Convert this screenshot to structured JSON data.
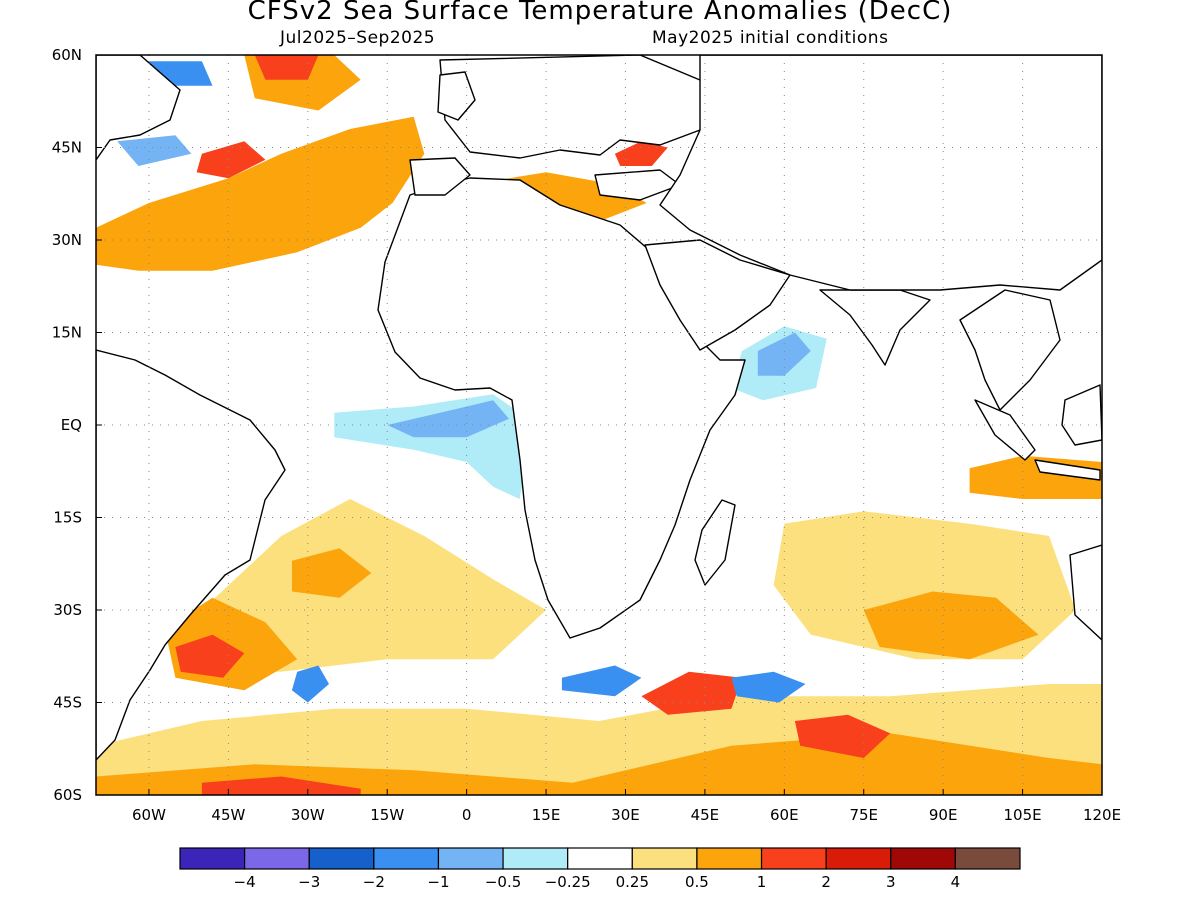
{
  "title": "CFSv2 Sea Surface Temperature Anomalies (DecC)",
  "subtitle_left": "Jul2025–Sep2025",
  "subtitle_right": "May2025 initial conditions",
  "map": {
    "lon_range": [
      -70,
      120
    ],
    "lat_range": [
      -60,
      60
    ],
    "lat_labels": [
      {
        "lat": 60,
        "text": "60N"
      },
      {
        "lat": 45,
        "text": "45N"
      },
      {
        "lat": 30,
        "text": "30N"
      },
      {
        "lat": 15,
        "text": "15N"
      },
      {
        "lat": 0,
        "text": "EQ"
      },
      {
        "lat": -15,
        "text": "15S"
      },
      {
        "lat": -30,
        "text": "30S"
      },
      {
        "lat": -45,
        "text": "45S"
      },
      {
        "lat": -60,
        "text": "60S"
      }
    ],
    "lon_labels": [
      {
        "lon": -60,
        "text": "60W"
      },
      {
        "lon": -45,
        "text": "45W"
      },
      {
        "lon": -30,
        "text": "30W"
      },
      {
        "lon": -15,
        "text": "15W"
      },
      {
        "lon": 0,
        "text": "0"
      },
      {
        "lon": 15,
        "text": "15E"
      },
      {
        "lon": 30,
        "text": "30E"
      },
      {
        "lon": 45,
        "text": "45E"
      },
      {
        "lon": 60,
        "text": "60E"
      },
      {
        "lon": 75,
        "text": "75E"
      },
      {
        "lon": 90,
        "text": "90E"
      },
      {
        "lon": 105,
        "text": "105E"
      },
      {
        "lon": 120,
        "text": "120E"
      }
    ]
  },
  "colorbar": {
    "colors": [
      "#3b24b8",
      "#7a68e8",
      "#1660cc",
      "#3a90f0",
      "#74b4f4",
      "#b0ecf8",
      "#ffffff",
      "#fde07e",
      "#fca40c",
      "#f8401c",
      "#d81c08",
      "#a00808",
      "#7a4a3c"
    ],
    "labels": [
      "−4",
      "−3",
      "−2",
      "−1",
      "−0.5",
      "−0.25",
      "0.25",
      "0.5",
      "1",
      "2",
      "3",
      "4"
    ]
  },
  "anomaly_regions": [
    {
      "name": "North Atlantic subtropical warm band",
      "color": "#fca40c",
      "poly": [
        [
          -70,
          32
        ],
        [
          -60,
          36
        ],
        [
          -45,
          40
        ],
        [
          -35,
          44
        ],
        [
          -22,
          48
        ],
        [
          -10,
          50
        ],
        [
          -8,
          44
        ],
        [
          -14,
          36
        ],
        [
          -20,
          32
        ],
        [
          -32,
          28
        ],
        [
          -48,
          25
        ],
        [
          -62,
          25
        ],
        [
          -70,
          26
        ]
      ]
    },
    {
      "name": "North Atlantic subpolar warm patch",
      "color": "#fca40c",
      "poly": [
        [
          -42,
          60
        ],
        [
          -25,
          60
        ],
        [
          -20,
          56
        ],
        [
          -28,
          51
        ],
        [
          -40,
          53
        ]
      ]
    },
    {
      "name": "North Atlantic subpolar warm core",
      "color": "#f8401c",
      "poly": [
        [
          -40,
          60
        ],
        [
          -28,
          60
        ],
        [
          -30,
          56
        ],
        [
          -38,
          56
        ]
      ]
    },
    {
      "name": "Mid-Atlantic warm core",
      "color": "#f8401c",
      "poly": [
        [
          -50,
          44
        ],
        [
          -42,
          46
        ],
        [
          -38,
          43
        ],
        [
          -45,
          40
        ],
        [
          -51,
          41
        ]
      ]
    },
    {
      "name": "Labrador cold patch",
      "color": "#3a90f0",
      "poly": [
        [
          -62,
          59
        ],
        [
          -50,
          59
        ],
        [
          -48,
          55
        ],
        [
          -56,
          55
        ]
      ]
    },
    {
      "name": "Nova Scotia cold patch",
      "color": "#74b4f4",
      "poly": [
        [
          -66,
          46
        ],
        [
          -55,
          47
        ],
        [
          -52,
          44
        ],
        [
          -62,
          42
        ]
      ]
    },
    {
      "name": "Mediterranean warm",
      "color": "#fca40c",
      "poly": [
        [
          -2,
          38
        ],
        [
          8,
          40
        ],
        [
          15,
          41
        ],
        [
          28,
          39
        ],
        [
          34,
          36
        ],
        [
          25,
          33
        ],
        [
          12,
          33
        ],
        [
          0,
          35
        ]
      ]
    },
    {
      "name": "Black Sea warm",
      "color": "#f8401c",
      "poly": [
        [
          28,
          44
        ],
        [
          33,
          46
        ],
        [
          38,
          45
        ],
        [
          35,
          42
        ],
        [
          29,
          42
        ]
      ]
    },
    {
      "name": "Gulf of Guinea cold tongue",
      "color": "#b0ecf8",
      "poly": [
        [
          -25,
          2
        ],
        [
          -10,
          3
        ],
        [
          5,
          5
        ],
        [
          10,
          2
        ],
        [
          12,
          -3
        ],
        [
          10,
          -12
        ],
        [
          5,
          -10
        ],
        [
          0,
          -6
        ],
        [
          -10,
          -4
        ],
        [
          -25,
          -2
        ]
      ]
    },
    {
      "name": "Gulf of Guinea cold core",
      "color": "#74b4f4",
      "poly": [
        [
          -15,
          0
        ],
        [
          -5,
          2
        ],
        [
          5,
          4
        ],
        [
          8,
          1
        ],
        [
          0,
          -2
        ],
        [
          -10,
          -2
        ]
      ]
    },
    {
      "name": "Arabian Sea cold",
      "color": "#b0ecf8",
      "poly": [
        [
          52,
          12
        ],
        [
          60,
          16
        ],
        [
          68,
          14
        ],
        [
          66,
          6
        ],
        [
          56,
          4
        ],
        [
          50,
          6
        ]
      ]
    },
    {
      "name": "Arabian Sea cold core",
      "color": "#74b4f4",
      "poly": [
        [
          55,
          12
        ],
        [
          62,
          15
        ],
        [
          65,
          12
        ],
        [
          60,
          8
        ],
        [
          55,
          8
        ]
      ]
    },
    {
      "name": "South Atlantic warm band",
      "color": "#fde07e",
      "poly": [
        [
          -50,
          -30
        ],
        [
          -35,
          -18
        ],
        [
          -22,
          -12
        ],
        [
          -8,
          -18
        ],
        [
          5,
          -25
        ],
        [
          15,
          -30
        ],
        [
          5,
          -38
        ],
        [
          -15,
          -38
        ],
        [
          -35,
          -40
        ],
        [
          -50,
          -40
        ]
      ]
    },
    {
      "name": "South Atlantic warm core",
      "color": "#fca40c",
      "poly": [
        [
          -33,
          -22
        ],
        [
          -24,
          -20
        ],
        [
          -18,
          -24
        ],
        [
          -24,
          -28
        ],
        [
          -33,
          -27
        ]
      ]
    },
    {
      "name": "Brazil-Malvinas warm",
      "color": "#fca40c",
      "poly": [
        [
          -57,
          -33
        ],
        [
          -48,
          -28
        ],
        [
          -38,
          -32
        ],
        [
          -32,
          -38
        ],
        [
          -42,
          -43
        ],
        [
          -55,
          -41
        ]
      ]
    },
    {
      "name": "Brazil-Malvinas warm core",
      "color": "#f8401c",
      "poly": [
        [
          -55,
          -36
        ],
        [
          -48,
          -34
        ],
        [
          -42,
          -37
        ],
        [
          -46,
          -41
        ],
        [
          -54,
          -40
        ]
      ]
    },
    {
      "name": "Southern Ocean warm band",
      "color": "#fde07e",
      "poly": [
        [
          -70,
          -52
        ],
        [
          -50,
          -48
        ],
        [
          -25,
          -46
        ],
        [
          0,
          -46
        ],
        [
          25,
          -48
        ],
        [
          50,
          -44
        ],
        [
          80,
          -44
        ],
        [
          110,
          -42
        ],
        [
          120,
          -42
        ],
        [
          120,
          -60
        ],
        [
          -70,
          -60
        ]
      ]
    },
    {
      "name": "Southern Ocean warm strip",
      "color": "#fca40c",
      "poly": [
        [
          -70,
          -57
        ],
        [
          -40,
          -55
        ],
        [
          -10,
          -56
        ],
        [
          20,
          -58
        ],
        [
          50,
          -52
        ],
        [
          80,
          -50
        ],
        [
          110,
          -54
        ],
        [
          120,
          -55
        ],
        [
          120,
          -60
        ],
        [
          -70,
          -60
        ]
      ]
    },
    {
      "name": "Southern Ocean warm cores",
      "color": "#f8401c",
      "poly": [
        [
          -50,
          -58
        ],
        [
          -35,
          -57
        ],
        [
          -20,
          -59
        ],
        [
          -20,
          -60
        ],
        [
          -50,
          -60
        ]
      ]
    },
    {
      "name": "Agulhas return warm",
      "color": "#f8401c",
      "poly": [
        [
          33,
          -44
        ],
        [
          42,
          -40
        ],
        [
          52,
          -41
        ],
        [
          50,
          -46
        ],
        [
          38,
          -47
        ]
      ]
    },
    {
      "name": "South Indian warm cell",
      "color": "#f8401c",
      "poly": [
        [
          62,
          -48
        ],
        [
          72,
          -47
        ],
        [
          80,
          -50
        ],
        [
          75,
          -54
        ],
        [
          63,
          -52
        ]
      ]
    },
    {
      "name": "South Atlantic cold eddies",
      "color": "#3a90f0",
      "poly": [
        [
          -32,
          -40
        ],
        [
          -28,
          -39
        ],
        [
          -26,
          -42
        ],
        [
          -30,
          -45
        ],
        [
          -33,
          -43
        ]
      ]
    },
    {
      "name": "Agulhas cold core",
      "color": "#3a90f0",
      "poly": [
        [
          18,
          -41
        ],
        [
          28,
          -39
        ],
        [
          33,
          -41
        ],
        [
          28,
          -44
        ],
        [
          18,
          -43
        ]
      ]
    },
    {
      "name": "Kerguelen cold core",
      "color": "#3a90f0",
      "poly": [
        [
          50,
          -41
        ],
        [
          58,
          -40
        ],
        [
          64,
          -42
        ],
        [
          59,
          -45
        ],
        [
          51,
          -44
        ]
      ]
    },
    {
      "name": "Indian Ocean subtropical warm",
      "color": "#fde07e",
      "poly": [
        [
          60,
          -16
        ],
        [
          75,
          -14
        ],
        [
          95,
          -16
        ],
        [
          110,
          -18
        ],
        [
          115,
          -30
        ],
        [
          105,
          -38
        ],
        [
          85,
          -38
        ],
        [
          65,
          -34
        ],
        [
          58,
          -26
        ]
      ]
    },
    {
      "name": "Indian Ocean subtropical warm core",
      "color": "#fca40c",
      "poly": [
        [
          75,
          -30
        ],
        [
          88,
          -27
        ],
        [
          100,
          -28
        ],
        [
          108,
          -34
        ],
        [
          95,
          -38
        ],
        [
          78,
          -36
        ]
      ]
    },
    {
      "name": "Indonesian throughflow warm",
      "color": "#fca40c",
      "poly": [
        [
          95,
          -7
        ],
        [
          105,
          -5
        ],
        [
          120,
          -6
        ],
        [
          120,
          -12
        ],
        [
          105,
          -12
        ],
        [
          95,
          -11
        ]
      ]
    }
  ]
}
